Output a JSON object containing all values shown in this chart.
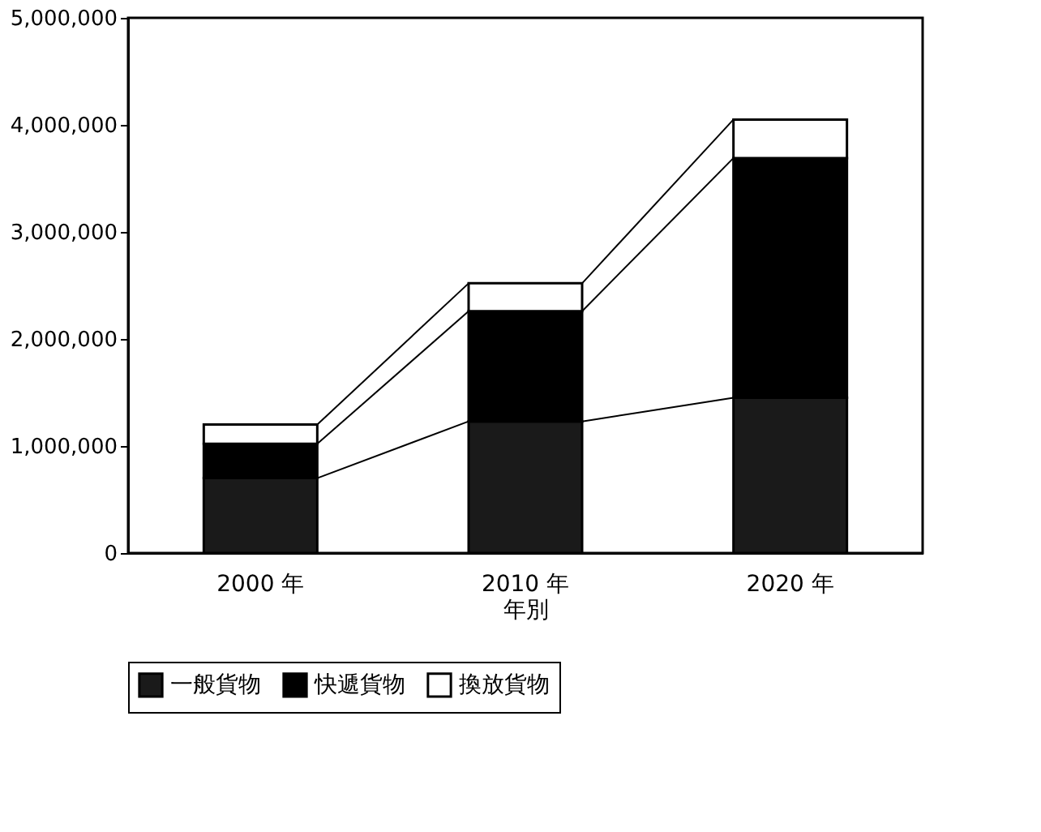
{
  "chart_data": {
    "type": "bar",
    "stacked": true,
    "xlabel": "年別",
    "categories": [
      "2000 年",
      "2010 年",
      "2020 年"
    ],
    "series": [
      {
        "name": "一般貨物",
        "color": "#1a1a1a",
        "values": [
          700000,
          1230000,
          1450000
        ]
      },
      {
        "name": "快遞貨物",
        "color": "#000000",
        "values": [
          320000,
          1030000,
          2240000
        ]
      },
      {
        "name": "換放貨物",
        "color": "#ffffff",
        "values": [
          180000,
          260000,
          360000
        ]
      }
    ],
    "ylim": [
      0,
      5000000
    ],
    "yticks": [
      0,
      {
        "value": 1000000,
        "label": "1,000,000"
      },
      {
        "value": 2000000,
        "label": "2,000,000"
      },
      {
        "value": 3000000,
        "label": "3,000,000"
      },
      {
        "value": 4000000,
        "label": "4,000,000"
      },
      {
        "value": 5000000,
        "label": "5,000,000"
      }
    ],
    "grid": false,
    "legend": "bottom"
  }
}
